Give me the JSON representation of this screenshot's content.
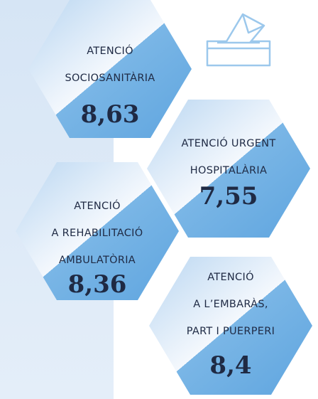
{
  "items": [
    {
      "lines": [
        "ATENCIÓ",
        "SOCIOSANITÀRIA"
      ],
      "score": "8,63"
    },
    {
      "lines": [
        "ATENCIÓ URGENT",
        "HOSPITALÀRIA"
      ],
      "score": "7,55"
    },
    {
      "lines": [
        "ATENCIÓ",
        "A REHABILITACIÓ",
        "AMBULATÒRIA"
      ],
      "score": "8,36"
    },
    {
      "lines": [
        "ATENCIÓ",
        "A L’EMBARÀS,",
        "PART I PUERPERI"
      ],
      "score": "8,4"
    }
  ]
}
